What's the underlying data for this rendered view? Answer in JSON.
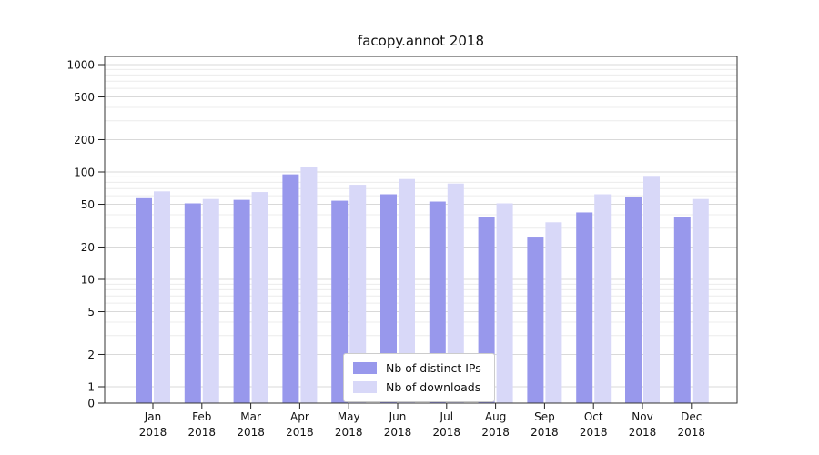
{
  "chart_data": {
    "type": "bar",
    "title": "facopy.annot 2018",
    "categories": [
      "Jan",
      "Feb",
      "Mar",
      "Apr",
      "May",
      "Jun",
      "Jul",
      "Aug",
      "Sep",
      "Oct",
      "Nov",
      "Dec"
    ],
    "year_label": "2018",
    "series": [
      {
        "name": "Nb of distinct IPs",
        "color": "#9898ec",
        "values": [
          57,
          51,
          55,
          95,
          54,
          62,
          53,
          38,
          25,
          42,
          58,
          38
        ]
      },
      {
        "name": "Nb of downloads",
        "color": "#d8d8f8",
        "values": [
          66,
          56,
          65,
          112,
          76,
          86,
          78,
          51,
          34,
          62,
          92,
          56
        ]
      }
    ],
    "yscale": "symlog",
    "y_ticks": [
      0,
      1,
      2,
      5,
      10,
      20,
      50,
      100,
      200,
      500,
      1000
    ],
    "ylim": [
      0,
      1300
    ],
    "grid": true,
    "legend_position": "lower center"
  }
}
